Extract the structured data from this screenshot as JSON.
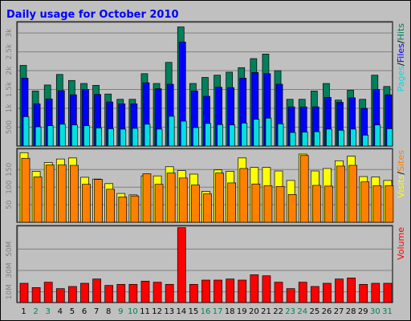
{
  "chart_data": {
    "type": "bar",
    "title": "Daily usage for October 2010",
    "categories": [
      "1",
      "2",
      "3",
      "4",
      "5",
      "6",
      "7",
      "8",
      "9",
      "10",
      "11",
      "12",
      "13",
      "14",
      "15",
      "16",
      "17",
      "18",
      "19",
      "20",
      "21",
      "22",
      "23",
      "24",
      "25",
      "26",
      "27",
      "28",
      "29",
      "30",
      "31"
    ],
    "weekend_days": [
      "2",
      "3",
      "9",
      "10",
      "16",
      "17",
      "23",
      "24",
      "30",
      "31"
    ],
    "colors": {
      "hits": "#00805c",
      "files": "#0000ff",
      "pages": "#00e0e0",
      "visits": "#ffff00",
      "sites": "#ff8000",
      "volume": "#ff0000",
      "title": "#0000ff",
      "weekday_label": "#000000",
      "weekend_label": "#00805c"
    },
    "panels": [
      {
        "name": "requests",
        "ylim": [
          0,
          3300
        ],
        "ticks": [
          {
            "value": 500,
            "label": "500"
          },
          {
            "value": 1000,
            "label": "1k"
          },
          {
            "value": 1500,
            "label": "1.5k"
          },
          {
            "value": 2000,
            "label": "2k"
          },
          {
            "value": 2500,
            "label": "2.5k"
          },
          {
            "value": 3000,
            "label": "3k"
          }
        ],
        "legend": [
          {
            "text": "Pages",
            "color": "#00e0e0"
          },
          {
            "text": "/",
            "color": "#000000"
          },
          {
            "text": "Files",
            "color": "#0000ff"
          },
          {
            "text": "/",
            "color": "#000000"
          },
          {
            "text": "Hits",
            "color": "#00805c"
          }
        ],
        "series": [
          {
            "name": "Hits",
            "color": "#00805c",
            "values": [
              2140,
              1460,
              1620,
              1900,
              1740,
              1660,
              1610,
              1380,
              1240,
              1240,
              1920,
              1660,
              2220,
              3160,
              1660,
              1820,
              1880,
              1960,
              2080,
              2320,
              2440,
              2000,
              1240,
              1240,
              1460,
              1660,
              1220,
              1480,
              1240,
              1880,
              1580
            ]
          },
          {
            "name": "Files",
            "color": "#0000ff",
            "values": [
              1800,
              1120,
              1250,
              1470,
              1360,
              1500,
              1370,
              1170,
              1120,
              1120,
              1680,
              1520,
              1640,
              2760,
              1460,
              1320,
              1560,
              1550,
              1800,
              1950,
              1920,
              1640,
              1040,
              1040,
              1040,
              1290,
              1160,
              1280,
              1000,
              1500,
              1360
            ]
          },
          {
            "name": "Pages",
            "color": "#00e0e0",
            "values": [
              780,
              510,
              540,
              580,
              560,
              540,
              480,
              460,
              450,
              470,
              580,
              450,
              790,
              660,
              490,
              600,
              570,
              560,
              610,
              710,
              740,
              590,
              360,
              370,
              380,
              450,
              420,
              450,
              290,
              560,
              460
            ]
          }
        ]
      },
      {
        "name": "visits",
        "ylim": [
          0,
          210
        ],
        "ticks": [
          {
            "value": 50,
            "label": "50"
          },
          {
            "value": 100,
            "label": "100"
          },
          {
            "value": 150,
            "label": "150"
          }
        ],
        "legend": [
          {
            "text": "Visits",
            "color": "#ffff00"
          },
          {
            "text": "/",
            "color": "#000000"
          },
          {
            "text": "Sites",
            "color": "#ff8000"
          }
        ],
        "series": [
          {
            "name": "Visits",
            "color": "#ffff00",
            "values": [
              198,
              145,
              170,
              180,
              183,
              128,
              123,
              110,
              82,
              78,
              132,
              132,
              158,
              147,
              137,
              88,
              149,
              145,
              183,
              156,
              156,
              146,
              119,
              194,
              146,
              153,
              175,
              188,
              130,
              129,
              119
            ]
          },
          {
            "name": "Sites",
            "color": "#ff8000",
            "values": [
              182,
              129,
              163,
              163,
              162,
              108,
              122,
              94,
              72,
              75,
              138,
              108,
              140,
              126,
              106,
              81,
              140,
              112,
              153,
              109,
              104,
              102,
              79,
              190,
              105,
              103,
              160,
              162,
              115,
              104,
              104
            ]
          }
        ]
      },
      {
        "name": "volume",
        "ylim": [
          0,
          72
        ],
        "ticks": [
          {
            "value": 10,
            "label": "10M"
          },
          {
            "value": 30,
            "label": "30M"
          },
          {
            "value": 50,
            "label": "50M"
          }
        ],
        "legend": [
          {
            "text": "Volume",
            "color": "#ff0000"
          }
        ],
        "series": [
          {
            "name": "Volume",
            "color": "#ff0000",
            "values": [
              18,
              14,
              19,
              13,
              15,
              18,
              22,
              16,
              17,
              17,
              20,
              19,
              17,
              70,
              17,
              21,
              21,
              22,
              21,
              26,
              25,
              19,
              13,
              19,
              15,
              18,
              22,
              23,
              17,
              18,
              18
            ]
          }
        ]
      }
    ]
  }
}
